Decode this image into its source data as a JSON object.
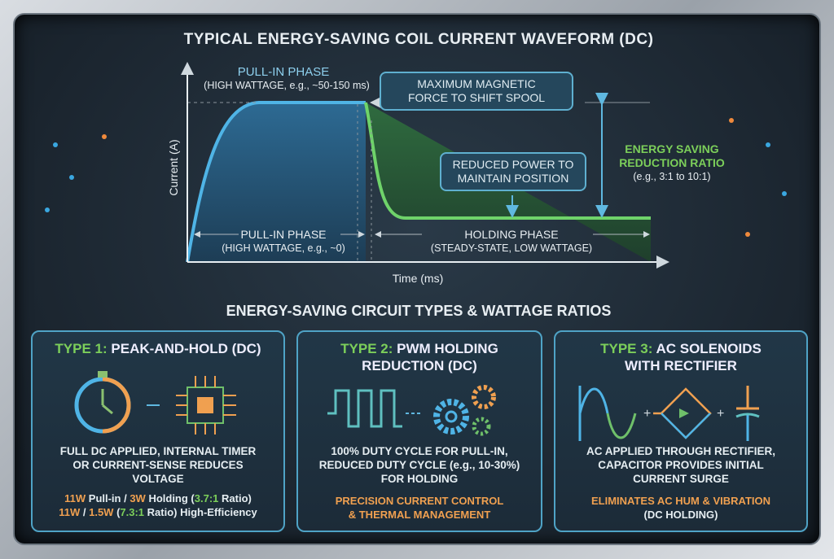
{
  "title": "TYPICAL ENERGY-SAVING COIL CURRENT WAVEFORM (DC)",
  "waveform": {
    "y_axis_label": "Current (A)",
    "x_axis_label": "Time (ms)",
    "pull_in_top_title": "PULL-IN PHASE",
    "pull_in_top_sub": "(HIGH WATTAGE, e.g., ~50-150 ms)",
    "max_force_box": [
      "MAXIMUM MAGNETIC",
      "FORCE TO SHIFT SPOOL"
    ],
    "reduced_power_box": [
      "REDUCED POWER TO",
      "MAINTAIN POSITION"
    ],
    "ratio_title": [
      "ENERGY SAVING",
      "REDUCTION RATIO"
    ],
    "ratio_sub": "(e.g., 3:1 to 10:1)",
    "pull_in_bottom_title": "PULL-IN PHASE",
    "pull_in_bottom_sub": "(HIGH WATTAGE, e.g., ~0)",
    "holding_title": "HOLDING PHASE",
    "holding_sub": "(STEADY-STATE, LOW WATTAGE)",
    "colors": {
      "pull_in": "#4fb4e6",
      "holding": "#6fd36a"
    }
  },
  "section_title": "ENERGY-SAVING CIRCUIT TYPES & WATTAGE RATIOS",
  "cards": [
    {
      "prefix": "TYPE 1:",
      "title": "PEAK-AND-HOLD (DC)",
      "icons": [
        "stopwatch-icon",
        "chip-icon"
      ],
      "desc": [
        "FULL DC APPLIED, INTERNAL TIMER",
        "OR CURRENT-SENSE REDUCES",
        "VOLTAGE"
      ],
      "line1": {
        "a": "11W",
        "b": " Pull-in / ",
        "c": "3W",
        "d": " Holding (",
        "e": "3.7:1",
        "f": " Ratio)"
      },
      "line2": {
        "a": "11W",
        "b": " / ",
        "c": "1.5W",
        "d": " (",
        "e": "7.3:1",
        "f": " Ratio) High-Efficiency"
      }
    },
    {
      "prefix": "TYPE 2:",
      "title": "PWM HOLDING",
      "title2": "REDUCTION (DC)",
      "icons": [
        "pwm-wave-icon",
        "gears-icon"
      ],
      "desc": [
        "100% DUTY CYCLE FOR PULL-IN,",
        "REDUCED DUTY CYCLE (e.g., 10-30%)",
        "FOR HOLDING"
      ],
      "foot": [
        "PRECISION CURRENT CONTROL",
        "& THERMAL MANAGEMENT"
      ]
    },
    {
      "prefix": "TYPE 3:",
      "title": "AC SOLENOIDS",
      "title2": "WITH RECTIFIER",
      "icons": [
        "sine-wave-icon",
        "bridge-rectifier-icon",
        "capacitor-icon"
      ],
      "desc": [
        "AC APPLIED THROUGH RECTIFIER,",
        "CAPACITOR PROVIDES INITIAL",
        "CURRENT SURGE"
      ],
      "foot": [
        "ELIMINATES AC HUM & VIBRATION",
        "(DC HOLDING)"
      ]
    }
  ]
}
